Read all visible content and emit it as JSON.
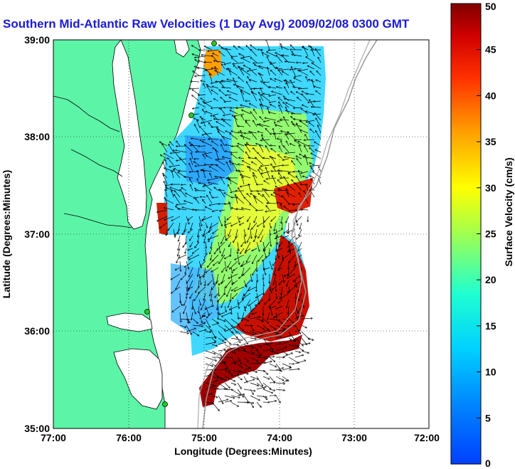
{
  "title": "Southern Mid-Atlantic Raw Velocities (1 Day Avg) 2009/02/08 0300 GMT",
  "xlabel": "Longitude (Degrees:Minutes)",
  "ylabel": "Latitude (Degrees:Minutes)",
  "xticks": [
    "77:00",
    "76:00",
    "75:00",
    "74:00",
    "73:00",
    "72:00"
  ],
  "yticks": [
    "39:00",
    "38:00",
    "37:00",
    "36:00",
    "35:00"
  ],
  "colorbar": {
    "label": "Surface Velocity (cm/s)",
    "ticks": [
      "0",
      "5",
      "10",
      "15",
      "20",
      "25",
      "30",
      "35",
      "40",
      "45",
      "50"
    ],
    "min": 0,
    "max": 50
  },
  "colors": {
    "land": "#5cf5a8",
    "ocean": "#ffffff",
    "title": "#1a1ad6",
    "station": "#22cc22"
  },
  "map_extent": {
    "lon": [
      -77,
      -72
    ],
    "lat": [
      35,
      39
    ]
  }
}
